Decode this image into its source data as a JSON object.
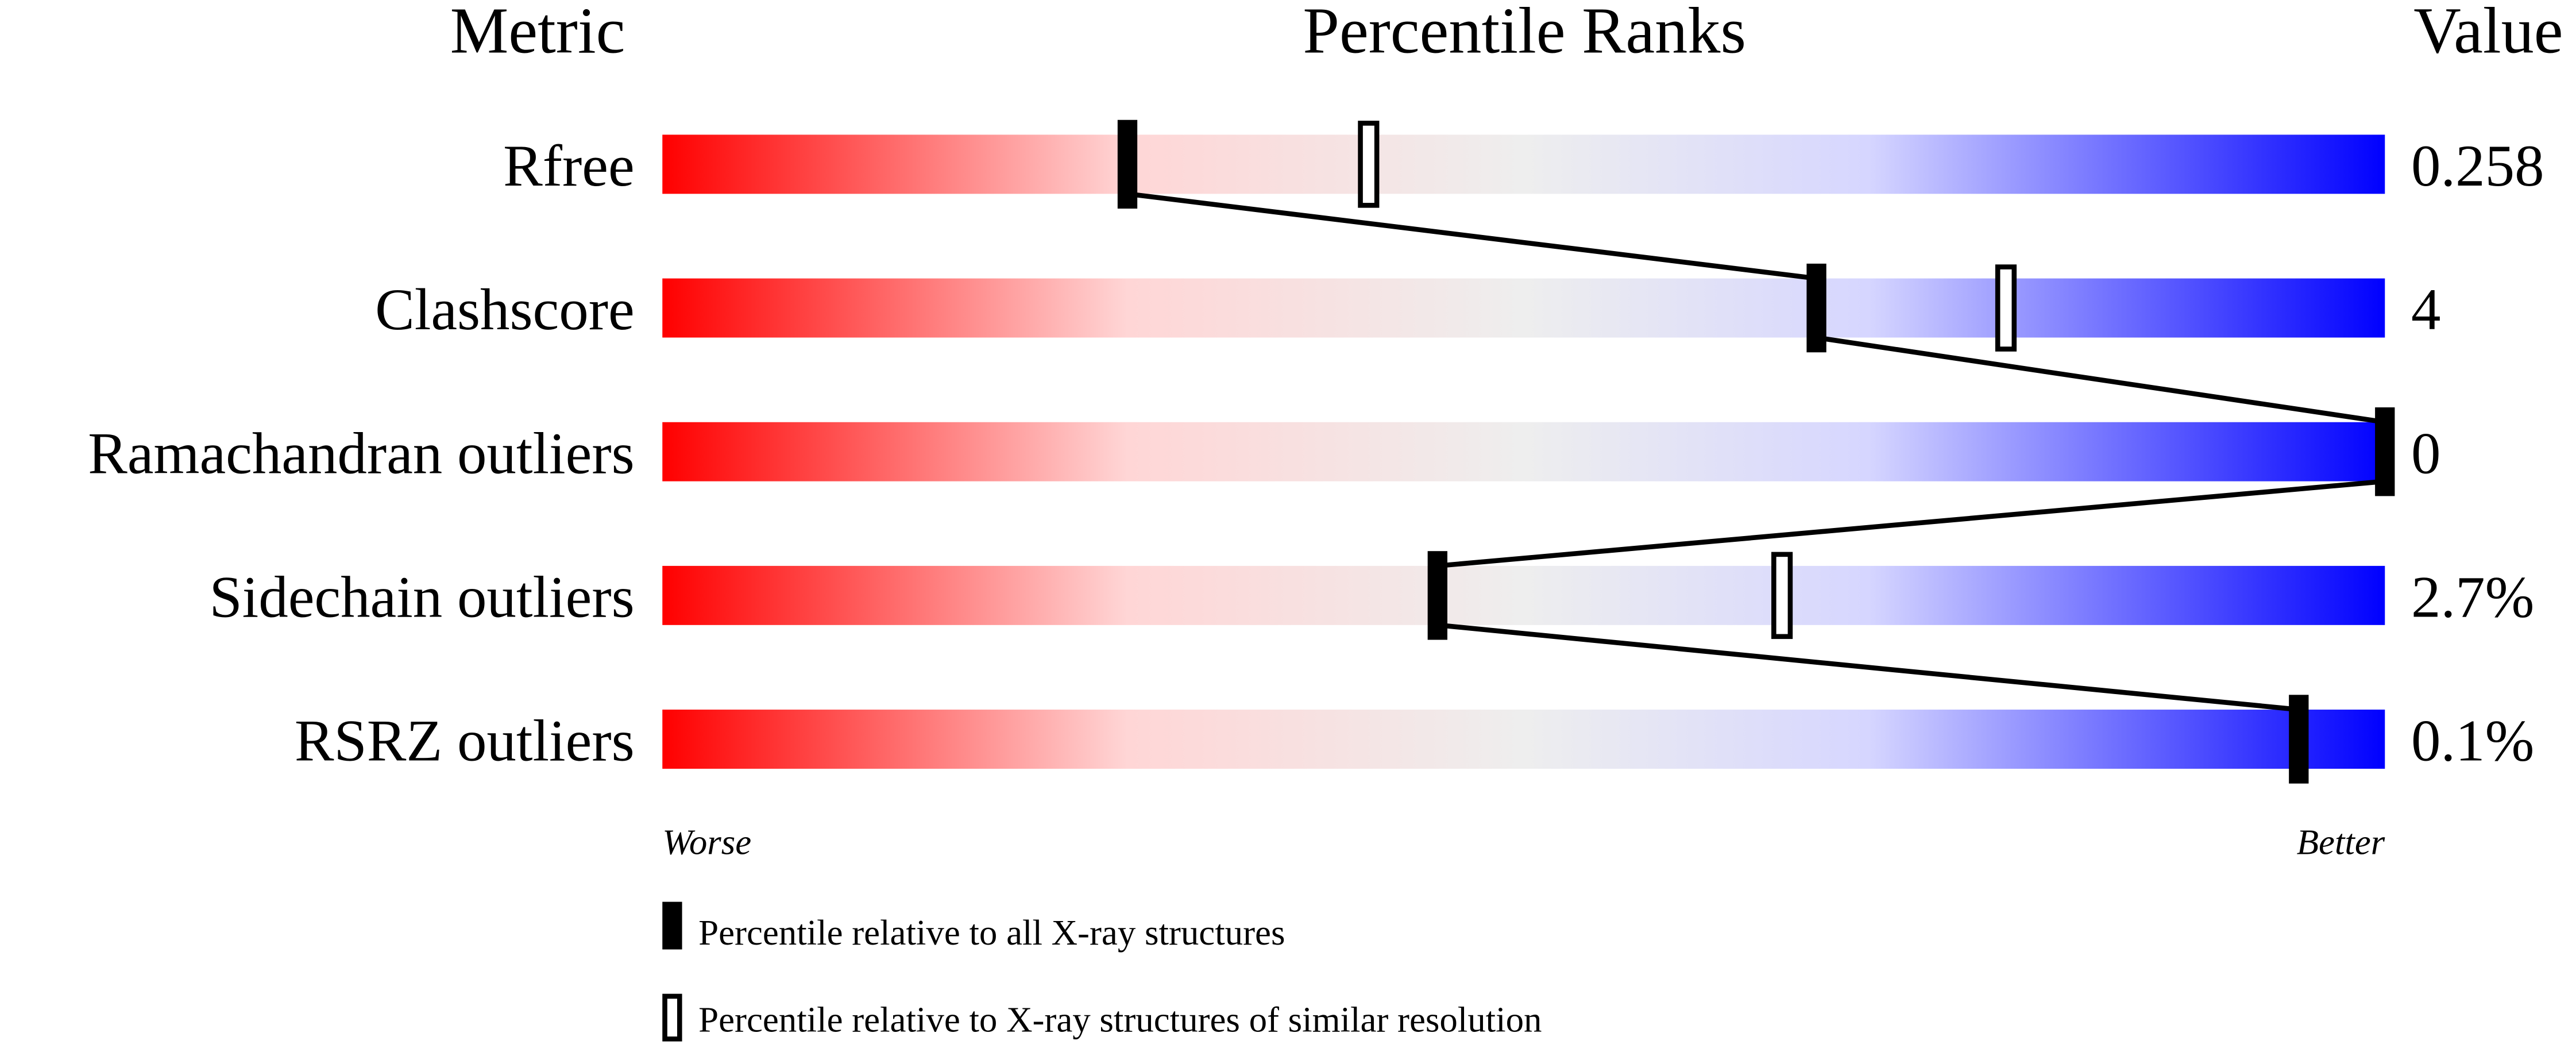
{
  "chart_data": {
    "type": "bar",
    "headers": {
      "metric": "Metric",
      "percentile": "Percentile Ranks",
      "value": "Value"
    },
    "xlim": [
      0,
      100
    ],
    "rows": [
      {
        "metric": "Rfree",
        "value": "0.258",
        "percentile_all": 27,
        "percentile_similar": 41
      },
      {
        "metric": "Clashscore",
        "value": "4",
        "percentile_all": 67,
        "percentile_similar": 78
      },
      {
        "metric": "Ramachandran outliers",
        "value": "0",
        "percentile_all": 100,
        "percentile_similar": null
      },
      {
        "metric": "Sidechain outliers",
        "value": "2.7%",
        "percentile_all": 45,
        "percentile_similar": 65
      },
      {
        "metric": "RSRZ outliers",
        "value": "0.1%",
        "percentile_all": 95,
        "percentile_similar": null
      }
    ],
    "axis_labels": {
      "left": "Worse",
      "right": "Better"
    },
    "legend": {
      "all": "Percentile relative to all X-ray structures",
      "similar": "Percentile relative to X-ray structures of similar resolution"
    },
    "colors": {
      "worse": "#ff0000",
      "middle": "#eeeeee",
      "better": "#0000ff"
    }
  }
}
